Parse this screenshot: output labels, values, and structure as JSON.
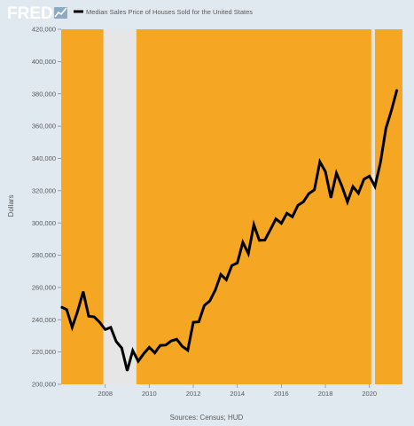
{
  "brand": {
    "logo_text": "FRED",
    "logo_icon": "fred-line-graph-icon"
  },
  "source": "Sources: Census; HUD",
  "colors": {
    "page_bg": "#e1e9f0",
    "plot_bg": "#f5a623",
    "recession": "#e6e6e6",
    "line": "#000000",
    "text": "#595959"
  },
  "chart_data": {
    "type": "line",
    "title": "",
    "legend": [
      {
        "label": "Median Sales Price of Houses Sold for the United States",
        "color": "#000000"
      }
    ],
    "legend_position": "top-left",
    "xlabel": "",
    "ylabel": "Dollars",
    "x_ticks": [
      "2008",
      "2010",
      "2012",
      "2014",
      "2016",
      "2018",
      "2020"
    ],
    "y_ticks": [
      "200,000",
      "220,000",
      "240,000",
      "260,000",
      "280,000",
      "300,000",
      "320,000",
      "340,000",
      "360,000",
      "380,000",
      "400,000",
      "420,000"
    ],
    "xlim": [
      "2006-01-01",
      "2021-07-01"
    ],
    "ylim": [
      200000,
      420000
    ],
    "grid": false,
    "recession_shading": [
      {
        "start": "2007-12-01",
        "end": "2009-06-01"
      },
      {
        "start": "2020-02-01",
        "end": "2020-04-01"
      }
    ],
    "series": [
      {
        "name": "Median Sales Price of Houses Sold for the United States",
        "x": [
          "2006-01-01",
          "2006-04-01",
          "2006-07-01",
          "2006-10-01",
          "2007-01-01",
          "2007-04-01",
          "2007-07-01",
          "2007-10-01",
          "2008-01-01",
          "2008-04-01",
          "2008-07-01",
          "2008-10-01",
          "2009-01-01",
          "2009-04-01",
          "2009-07-01",
          "2009-10-01",
          "2010-01-01",
          "2010-04-01",
          "2010-07-01",
          "2010-10-01",
          "2011-01-01",
          "2011-04-01",
          "2011-07-01",
          "2011-10-01",
          "2012-01-01",
          "2012-04-01",
          "2012-07-01",
          "2012-10-01",
          "2013-01-01",
          "2013-04-01",
          "2013-07-01",
          "2013-10-01",
          "2014-01-01",
          "2014-04-01",
          "2014-07-01",
          "2014-10-01",
          "2015-01-01",
          "2015-04-01",
          "2015-07-01",
          "2015-10-01",
          "2016-01-01",
          "2016-04-01",
          "2016-07-01",
          "2016-10-01",
          "2017-01-01",
          "2017-04-01",
          "2017-07-01",
          "2017-10-01",
          "2018-01-01",
          "2018-04-01",
          "2018-07-01",
          "2018-10-01",
          "2019-01-01",
          "2019-04-01",
          "2019-07-01",
          "2019-10-01",
          "2020-01-01",
          "2020-04-01",
          "2020-07-01",
          "2020-10-01",
          "2021-01-01",
          "2021-04-01"
        ],
        "y": [
          247900,
          246300,
          235300,
          245400,
          257400,
          242200,
          241800,
          238400,
          233900,
          235300,
          226500,
          222500,
          208400,
          220900,
          214300,
          219000,
          222900,
          219500,
          224100,
          224300,
          226900,
          227900,
          223500,
          221100,
          238400,
          238700,
          248800,
          251700,
          258400,
          268100,
          264800,
          273600,
          275200,
          288000,
          281000,
          298900,
          289200,
          289400,
          295800,
          302500,
          299800,
          306000,
          303800,
          310900,
          313100,
          318200,
          320500,
          337900,
          331800,
          315600,
          330900,
          322800,
          313000,
          322500,
          318400,
          327100,
          329000,
          322600,
          337500,
          358700,
          369800,
          382600
        ]
      }
    ]
  }
}
